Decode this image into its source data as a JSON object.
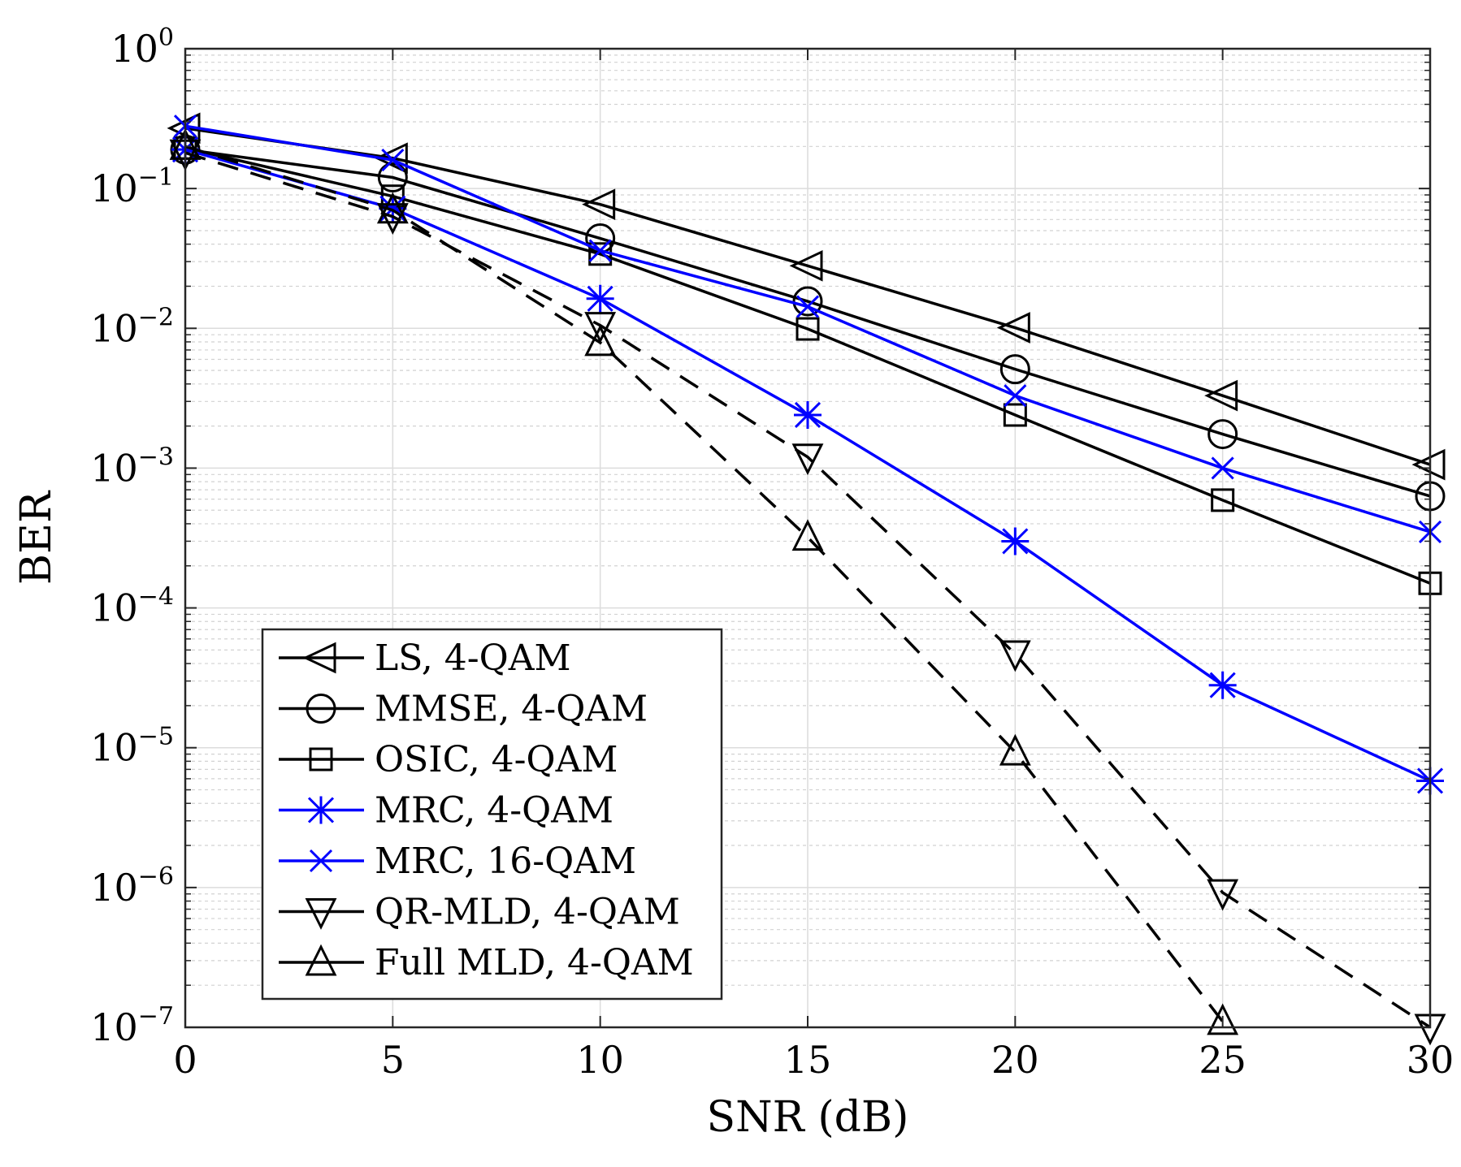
{
  "chart_data": {
    "type": "line",
    "xlabel": "SNR (dB)",
    "ylabel": "BER",
    "yscale": "log",
    "xlim": [
      0,
      30
    ],
    "ylim": [
      1e-07,
      1
    ],
    "grid": true,
    "minor_grid": true,
    "legend_position": "bottom-left",
    "x": [
      0,
      5,
      10,
      15,
      20,
      25,
      30
    ],
    "x_ticks": [
      {
        "value": 0,
        "label": "0"
      },
      {
        "value": 5,
        "label": "5"
      },
      {
        "value": 10,
        "label": "10"
      },
      {
        "value": 15,
        "label": "15"
      },
      {
        "value": 20,
        "label": "20"
      },
      {
        "value": 25,
        "label": "25"
      },
      {
        "value": 30,
        "label": "30"
      }
    ],
    "y_ticks": [
      {
        "value": 1,
        "base": "10",
        "exp": "0"
      },
      {
        "value": 0.1,
        "base": "10",
        "exp": "−1"
      },
      {
        "value": 0.01,
        "base": "10",
        "exp": "−2"
      },
      {
        "value": 0.001,
        "base": "10",
        "exp": "−3"
      },
      {
        "value": 0.0001,
        "base": "10",
        "exp": "−4"
      },
      {
        "value": 1e-05,
        "base": "10",
        "exp": "−5"
      },
      {
        "value": 1e-06,
        "base": "10",
        "exp": "−6"
      },
      {
        "value": 1e-07,
        "base": "10",
        "exp": "−7"
      }
    ],
    "series": [
      {
        "name": "LS, 4-QAM",
        "color": "#000000",
        "marker": "triangle-left",
        "dashed": false,
        "values": [
          0.27,
          0.165,
          0.077,
          0.028,
          0.0101,
          0.0033,
          0.00106
        ]
      },
      {
        "name": "MMSE, 4-QAM",
        "color": "#000000",
        "marker": "circle",
        "dashed": false,
        "values": [
          0.19,
          0.12,
          0.044,
          0.0156,
          0.0051,
          0.00175,
          0.00063
        ]
      },
      {
        "name": "OSIC, 4-QAM",
        "color": "#000000",
        "marker": "square",
        "dashed": false,
        "values": [
          0.195,
          0.088,
          0.034,
          0.0099,
          0.0024,
          0.00059,
          0.00015
        ]
      },
      {
        "name": "MRC, 4-QAM",
        "color": "#0000ff",
        "marker": "asterisk",
        "dashed": false,
        "values": [
          0.19,
          0.072,
          0.0163,
          0.0024,
          0.0003,
          2.8e-05,
          5.8e-06
        ]
      },
      {
        "name": "MRC, 16-QAM",
        "color": "#0000ff",
        "marker": "x",
        "dashed": false,
        "values": [
          0.28,
          0.16,
          0.036,
          0.0143,
          0.0033,
          0.001,
          0.00035
        ]
      },
      {
        "name": "QR-MLD, 4-QAM",
        "color": "#000000",
        "marker": "triangle-down",
        "dashed": true,
        "values": [
          0.18,
          0.063,
          0.0105,
          0.0012,
          4.7e-05,
          9.2e-07,
          1e-07
        ]
      },
      {
        "name": "Full MLD, 4-QAM",
        "color": "#000000",
        "marker": "triangle-up",
        "dashed": true,
        "values": [
          0.2,
          0.07,
          0.0079,
          0.00032,
          9.3e-06,
          1.1e-07,
          null
        ]
      }
    ]
  }
}
